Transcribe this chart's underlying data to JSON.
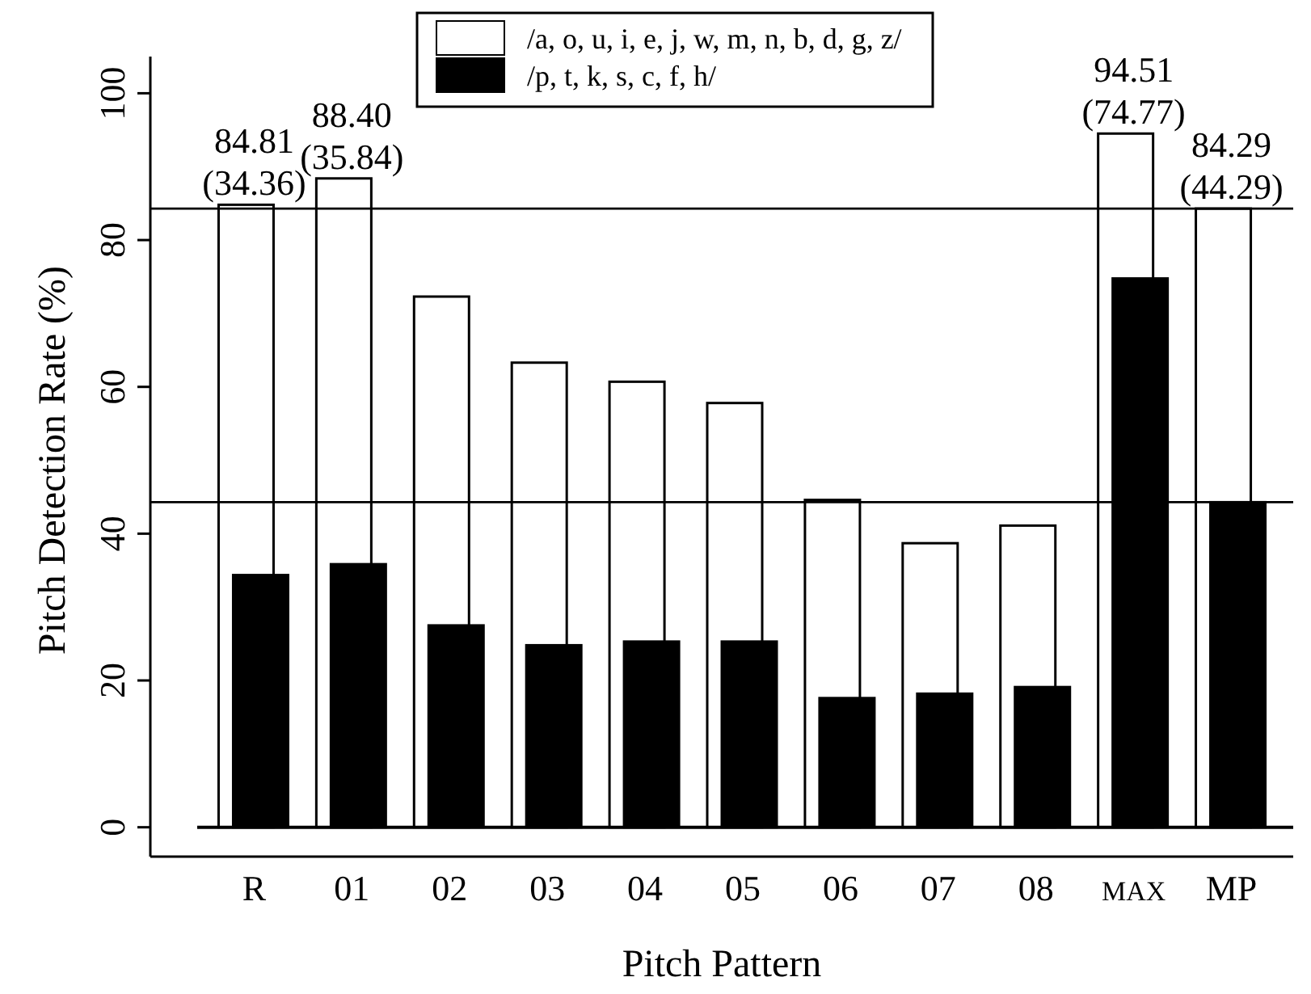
{
  "chart_data": {
    "type": "bar",
    "xlabel": "Pitch Pattern",
    "ylabel": "Pitch Detection Rate (%)",
    "categories": [
      "R",
      "01",
      "02",
      "03",
      "04",
      "05",
      "06",
      "07",
      "08",
      "MAX",
      "MP"
    ],
    "series": [
      {
        "name": "/a, o, u, i, e, j, w, m, n, b, d, g, z/",
        "color": "#ffffff",
        "values": [
          84.81,
          88.4,
          72.3,
          63.3,
          60.7,
          57.8,
          44.6,
          38.7,
          41.1,
          94.51,
          84.29
        ],
        "value_labels": [
          "84.81",
          "88.40",
          null,
          null,
          null,
          null,
          null,
          null,
          null,
          "94.51",
          "84.29"
        ]
      },
      {
        "name": "/p, t, k, s, c, f, h/",
        "color": "#000000",
        "values": [
          34.36,
          35.84,
          27.5,
          24.8,
          25.3,
          25.3,
          17.6,
          18.2,
          19.1,
          74.77,
          44.29
        ]
      }
    ],
    "annotations": [
      "(34.36)",
      "(35.84)",
      "(74.77)",
      "(44.29)"
    ],
    "ylim": [
      -4,
      105
    ],
    "yticks": [
      0,
      20,
      40,
      60,
      80,
      100
    ],
    "ref_lines": [
      {
        "axis": "y",
        "value": 84.29,
        "color": "#000000"
      },
      {
        "axis": "y",
        "value": 44.29,
        "color": "#000000"
      }
    ],
    "legend": "top"
  }
}
